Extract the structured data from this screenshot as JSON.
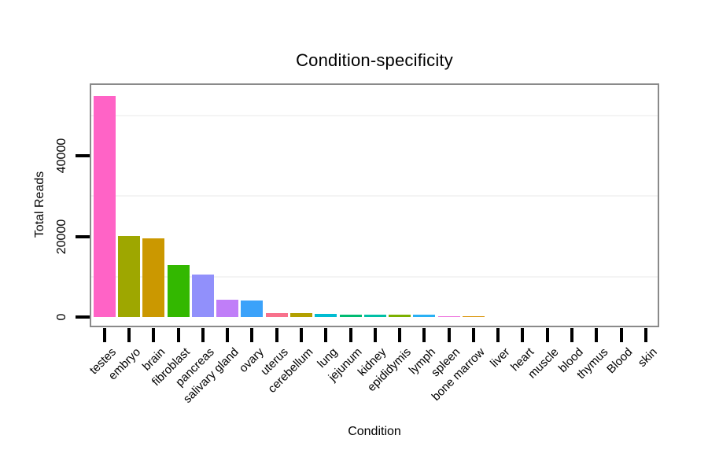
{
  "figure": {
    "background": "#FFFFFF"
  },
  "chart_data": {
    "type": "bar",
    "title": "Condition-specificity",
    "xlabel": "Condition",
    "ylabel": "Total Reads",
    "ylim": [
      0,
      57800
    ],
    "yticks": [
      0,
      20000,
      40000
    ],
    "ytick_labels": [
      "0",
      "20000",
      "40000"
    ],
    "minor_gridlines": [
      10000,
      30000,
      50000
    ],
    "grid": "faint horizontal minor gridlines only",
    "legend_position": "none",
    "bar_order": "descending by value",
    "categories": [
      "testes",
      "embryo",
      "brain",
      "fibroblast",
      "pancreas",
      "salivary gland",
      "ovary",
      "uterus",
      "cerebellum",
      "lung",
      "jejunum",
      "kidney",
      "epididymis",
      "lymph",
      "spleen",
      "bone marrow",
      "liver",
      "heart",
      "muscle",
      "blood",
      "thymus",
      "Blood",
      "skin"
    ],
    "values": [
      54900,
      20100,
      19500,
      12900,
      10500,
      4350,
      4100,
      1050,
      1000,
      780,
      650,
      590,
      530,
      520,
      250,
      180,
      0,
      0,
      0,
      0,
      0,
      0,
      0
    ],
    "bar_colors": [
      "#FF63C6",
      "#9EA700",
      "#CB9800",
      "#33B800",
      "#9190FB",
      "#C07EF8",
      "#3BA2FA",
      "#F8718C",
      "#B3A000",
      "#00BCD2",
      "#00BB72",
      "#00BFA5",
      "#7BB000",
      "#29B0F4",
      "#ED6FDC",
      "#D89000",
      "#00BDD0",
      "#00BC59",
      "#7B9BFF",
      "#E88526",
      "#E76BF3",
      "#F8766D",
      "#FA62DB"
    ],
    "styles": {
      "panel_border_color": "#8A8A8A",
      "tick_color": "#000000",
      "gridline_color": "#F4F4F4",
      "text_color": "#000000"
    }
  }
}
